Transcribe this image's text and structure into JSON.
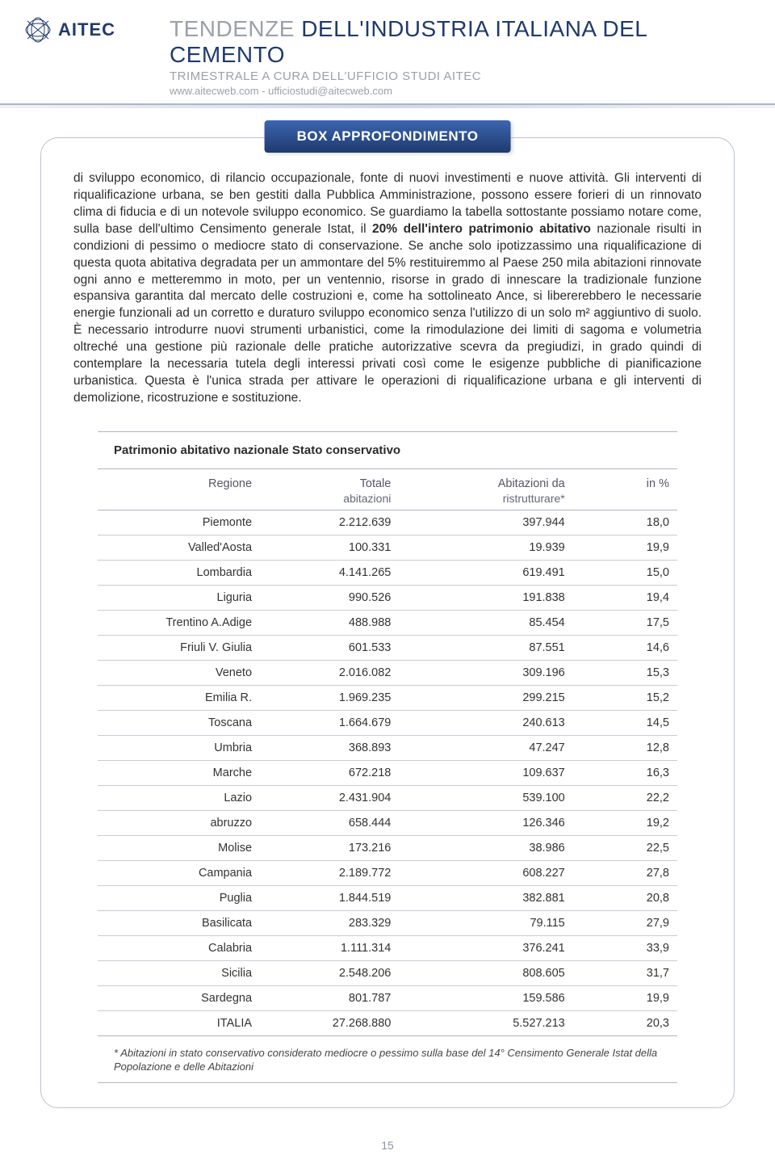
{
  "header": {
    "brand": "AITEC",
    "title_prefix": "TENDENZE ",
    "title_accent": "DELL'INDUSTRIA ITALIANA DEL CEMENTO",
    "subtitle": "TRIMESTRALE A CURA DELL'UFFICIO STUDI AITEC",
    "link": "www.aitecweb.com - ufficiostudi@aitecweb.com"
  },
  "box_label": "BOX APPROFONDIMENTO",
  "body": {
    "p1_a": "di sviluppo economico, di rilancio occupazionale, fonte di nuovi investimenti e nuove attività. Gli interventi di riqualificazione urbana, se ben gestiti dalla Pubblica Amministrazione, possono essere forieri di un rinnovato clima di fiducia e di un notevole sviluppo economico. Se guardiamo la tabella sottostante possiamo notare come, sulla base dell'ultimo Censimento generale Istat, il ",
    "p1_bold": "20% dell'intero patrimonio abitativo",
    "p1_b": " nazionale risulti in condizioni di pessimo o mediocre stato di conservazione. Se anche solo ipotizzassimo una riqualificazione di questa quota abitativa degradata per un ammontare del 5% restituiremmo al Paese 250 mila abitazioni rinnovate ogni anno e metteremmo in moto, per un ventennio, risorse in grado di innescare la tradizionale funzione espansiva garantita dal mercato delle costruzioni e, come ha sottolineato Ance, si libererebbero le necessarie energie funzionali ad un corretto e duraturo sviluppo economico senza l'utilizzo di un solo m² aggiuntivo di suolo. È necessario introdurre nuovi strumenti urbanistici, come la rimodulazione dei limiti di sagoma e volumetria oltreché una gestione più razionale delle pratiche autorizzative scevra da pregiudizi, in grado quindi di contemplare la necessaria tutela degli interessi privati così come le esigenze pubbliche di pianificazione urbanistica. Questa è l'unica strada per attivare le operazioni di riqualificazione urbana e gli interventi di demolizione, ricostruzione e sostituzione."
  },
  "table": {
    "title": "Patrimonio abitativo nazionale Stato conservativo",
    "columns": {
      "region": "Regione",
      "totale": "Totale",
      "totale_sub": "abitazioni",
      "ristru": "Abitazioni da",
      "ristru_sub": "ristrutturare*",
      "pct": "in %"
    },
    "rows": [
      {
        "r": "Piemonte",
        "t": "2.212.639",
        "d": "397.944",
        "p": "18,0"
      },
      {
        "r": "Valled'Aosta",
        "t": "100.331",
        "d": "19.939",
        "p": "19,9"
      },
      {
        "r": "Lombardia",
        "t": "4.141.265",
        "d": "619.491",
        "p": "15,0"
      },
      {
        "r": "Liguria",
        "t": "990.526",
        "d": "191.838",
        "p": "19,4"
      },
      {
        "r": "Trentino A.Adige",
        "t": "488.988",
        "d": "85.454",
        "p": "17,5"
      },
      {
        "r": "Friuli V. Giulia",
        "t": "601.533",
        "d": "87.551",
        "p": "14,6"
      },
      {
        "r": "Veneto",
        "t": "2.016.082",
        "d": "309.196",
        "p": "15,3"
      },
      {
        "r": "Emilia R.",
        "t": "1.969.235",
        "d": "299.215",
        "p": "15,2"
      },
      {
        "r": "Toscana",
        "t": "1.664.679",
        "d": "240.613",
        "p": "14,5"
      },
      {
        "r": "Umbria",
        "t": "368.893",
        "d": "47.247",
        "p": "12,8"
      },
      {
        "r": "Marche",
        "t": "672.218",
        "d": "109.637",
        "p": "16,3"
      },
      {
        "r": "Lazio",
        "t": "2.431.904",
        "d": "539.100",
        "p": "22,2"
      },
      {
        "r": "abruzzo",
        "t": "658.444",
        "d": "126.346",
        "p": "19,2"
      },
      {
        "r": "Molise",
        "t": "173.216",
        "d": "38.986",
        "p": "22,5"
      },
      {
        "r": "Campania",
        "t": "2.189.772",
        "d": "608.227",
        "p": "27,8"
      },
      {
        "r": "Puglia",
        "t": "1.844.519",
        "d": "382.881",
        "p": "20,8"
      },
      {
        "r": "Basilicata",
        "t": "283.329",
        "d": "79.115",
        "p": "27,9"
      },
      {
        "r": "Calabria",
        "t": "1.111.314",
        "d": "376.241",
        "p": "33,9"
      },
      {
        "r": "Sicilia",
        "t": "2.548.206",
        "d": "808.605",
        "p": "31,7"
      },
      {
        "r": "Sardegna",
        "t": "801.787",
        "d": "159.586",
        "p": "19,9"
      },
      {
        "r": "ITALIA",
        "t": "27.268.880",
        "d": "5.527.213",
        "p": "20,3"
      }
    ],
    "footnote": "* Abitazioni in stato conservativo considerato mediocre o pessimo sulla base del 14° Censimento Generale Istat della Popolazione e delle Abitazioni"
  },
  "page_number": "15",
  "colors": {
    "brand_blue": "#1f3a6e",
    "grey_text": "#9aa1ab",
    "rule": "#aeb6c2",
    "box_grad_top": "#3b66b0",
    "box_grad_bottom": "#1f3a6e"
  }
}
